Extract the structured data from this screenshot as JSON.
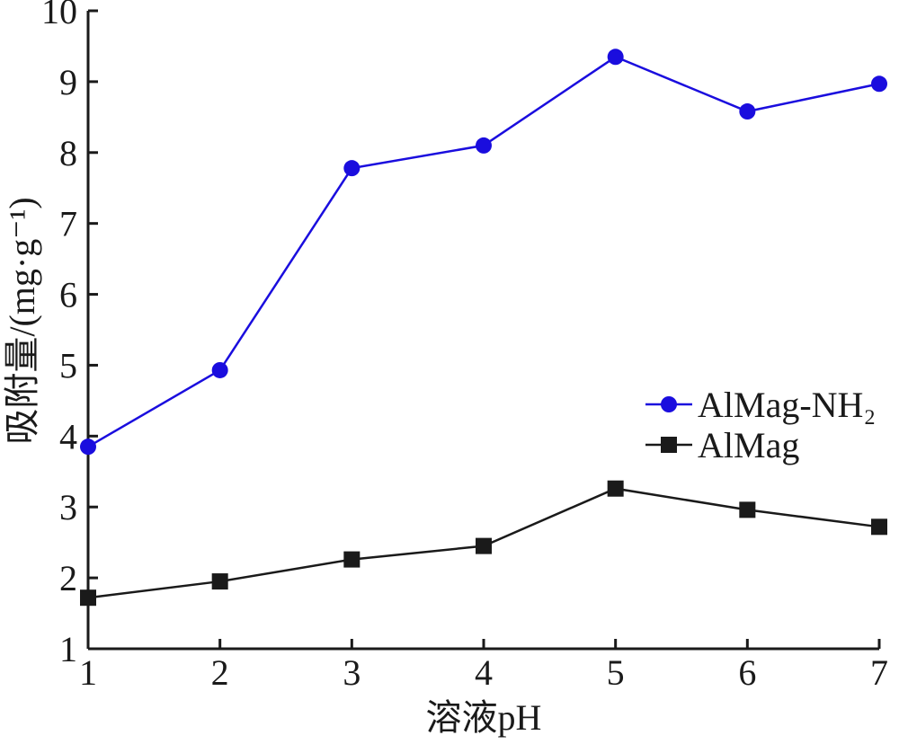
{
  "chart_data": {
    "type": "line",
    "xlabel": "溶液pH",
    "ylabel": "吸附量/(mg·g⁻¹)",
    "xlim": [
      1,
      7
    ],
    "ylim": [
      1,
      10
    ],
    "x_ticks": [
      "1",
      "2",
      "3",
      "4",
      "5",
      "6",
      "7"
    ],
    "y_ticks": [
      "1",
      "2",
      "3",
      "4",
      "5",
      "6",
      "7",
      "8",
      "9",
      "10"
    ],
    "x": [
      1,
      2,
      3,
      4,
      5,
      6,
      7
    ],
    "grid": false,
    "legend_position": "right",
    "series": [
      {
        "name": "AlMag-NH₂",
        "marker": "circle",
        "color": "#1a0dde",
        "values": [
          3.85,
          4.93,
          7.78,
          8.1,
          9.35,
          8.58,
          8.97
        ]
      },
      {
        "name": "AlMag",
        "marker": "square",
        "color": "#1a1a1a",
        "values": [
          1.72,
          1.95,
          2.26,
          2.45,
          3.26,
          2.96,
          2.72
        ]
      }
    ]
  }
}
